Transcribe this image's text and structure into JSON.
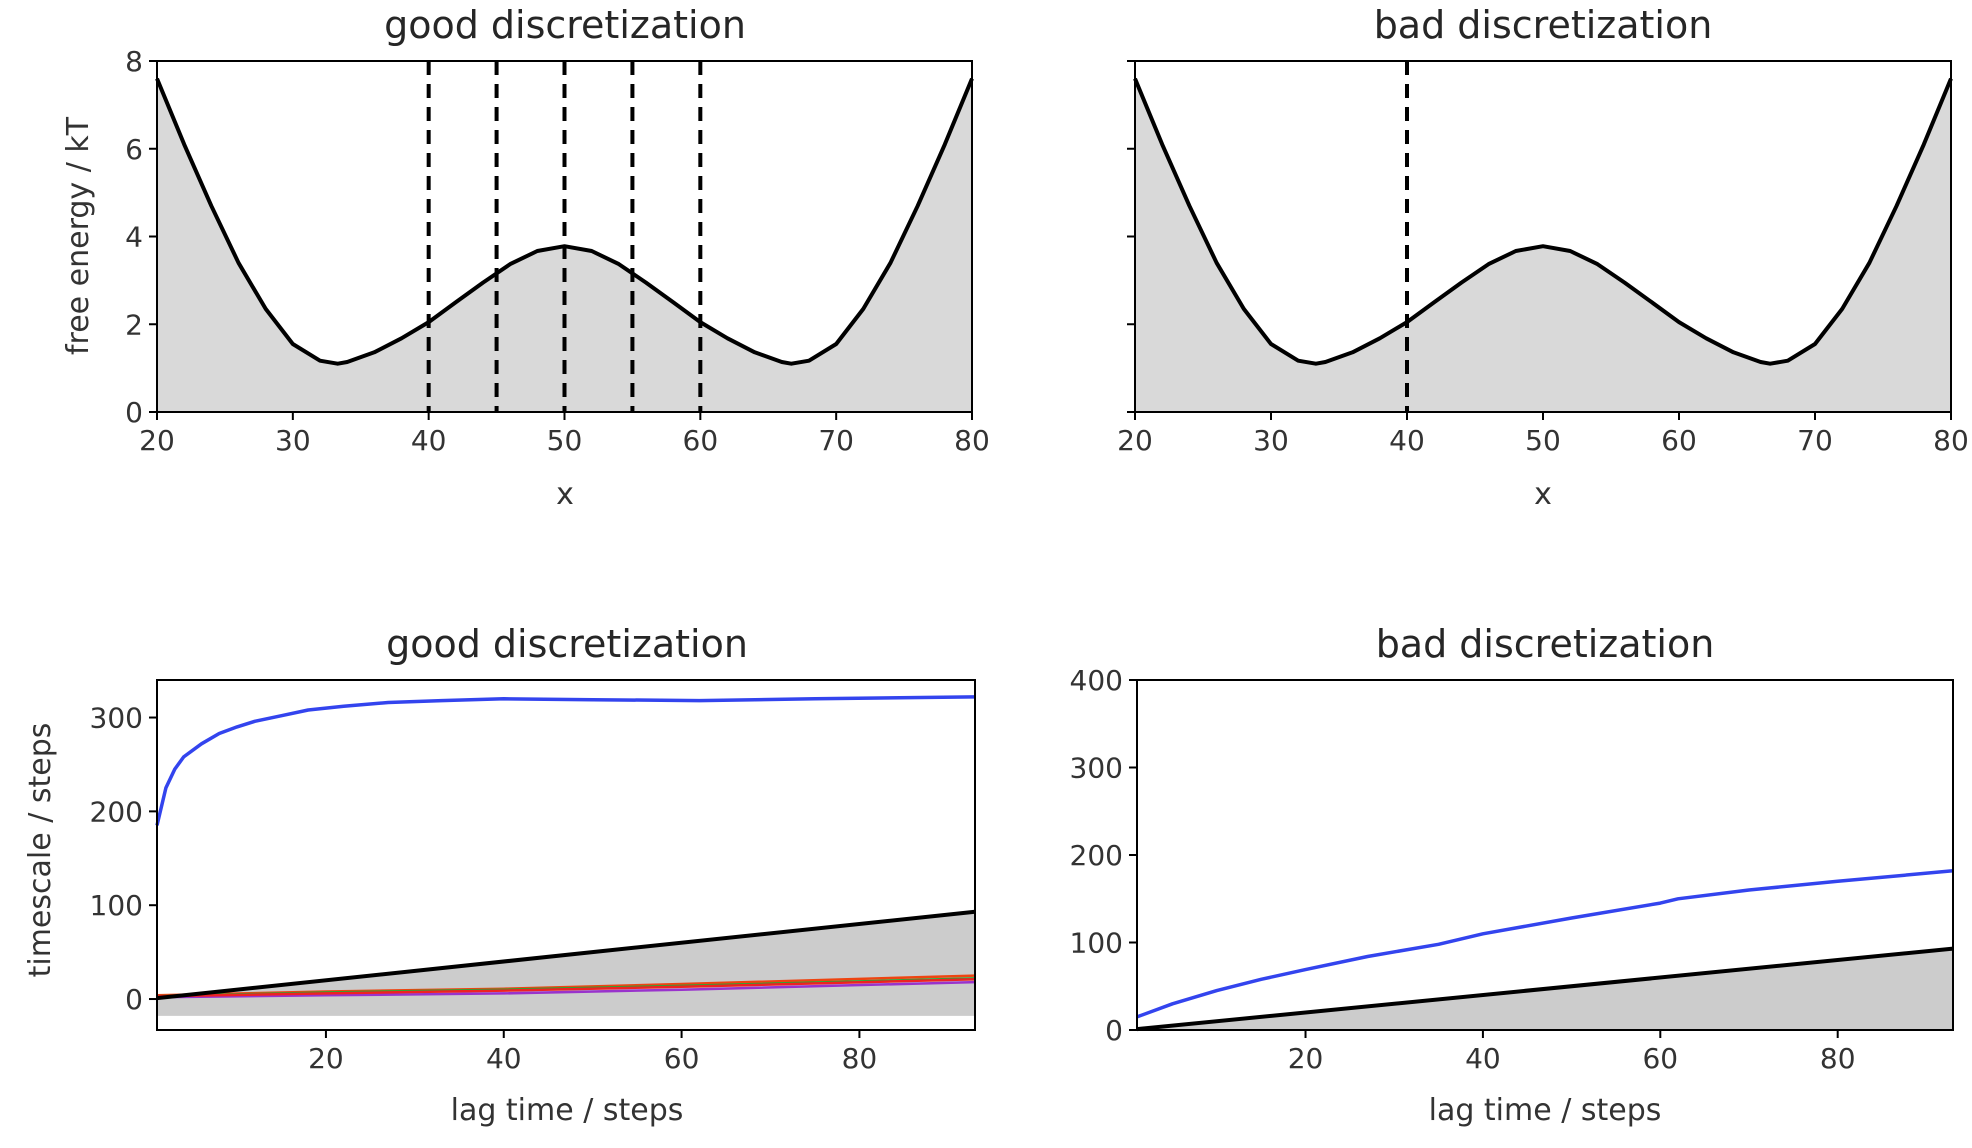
{
  "chart_data": [
    {
      "type": "line",
      "title": "good discretization",
      "xlabel": "x",
      "ylabel": "free energy / kT",
      "xlim": [
        20,
        80
      ],
      "ylim": [
        0,
        8
      ],
      "xticks": [
        "20",
        "30",
        "40",
        "50",
        "60",
        "70",
        "80"
      ],
      "yticks": [
        "0",
        "2",
        "4",
        "6",
        "8"
      ],
      "curve": {
        "x": [
          20,
          22,
          24,
          26,
          28,
          30,
          32,
          33.3,
          34,
          36,
          38,
          40,
          42,
          44,
          46,
          48,
          50,
          52,
          54,
          56,
          58,
          60,
          62,
          64,
          66,
          66.7,
          68,
          70,
          72,
          74,
          76,
          78,
          80
        ],
        "y": [
          7.6,
          6.1,
          4.7,
          3.4,
          2.35,
          1.55,
          1.17,
          1.1,
          1.14,
          1.36,
          1.68,
          2.05,
          2.5,
          2.95,
          3.37,
          3.67,
          3.78,
          3.67,
          3.37,
          2.95,
          2.5,
          2.05,
          1.68,
          1.36,
          1.14,
          1.1,
          1.17,
          1.55,
          2.35,
          3.4,
          4.7,
          6.1,
          7.6
        ]
      },
      "fill_color": "#d9d9d9",
      "line_color": "#000000",
      "cluster_boundaries": [
        40,
        45,
        50,
        55,
        60
      ]
    },
    {
      "type": "line",
      "title": "bad discretization",
      "xlabel": "x",
      "ylabel": "",
      "xlim": [
        20,
        80
      ],
      "ylim": [
        0,
        8
      ],
      "xticks": [
        "20",
        "30",
        "40",
        "50",
        "60",
        "70",
        "80"
      ],
      "yticks": [],
      "curve": {
        "x": [
          20,
          22,
          24,
          26,
          28,
          30,
          32,
          33.3,
          34,
          36,
          38,
          40,
          42,
          44,
          46,
          48,
          50,
          52,
          54,
          56,
          58,
          60,
          62,
          64,
          66,
          66.7,
          68,
          70,
          72,
          74,
          76,
          78,
          80
        ],
        "y": [
          7.6,
          6.1,
          4.7,
          3.4,
          2.35,
          1.55,
          1.17,
          1.1,
          1.14,
          1.36,
          1.68,
          2.05,
          2.5,
          2.95,
          3.37,
          3.67,
          3.78,
          3.67,
          3.37,
          2.95,
          2.5,
          2.05,
          1.68,
          1.36,
          1.14,
          1.1,
          1.17,
          1.55,
          2.35,
          3.4,
          4.7,
          6.1,
          7.6
        ]
      },
      "fill_color": "#d9d9d9",
      "line_color": "#000000",
      "cluster_boundaries": [
        40
      ]
    },
    {
      "type": "line",
      "title": "good discretization",
      "xlabel": "lag time / steps",
      "ylabel": "timescale / steps",
      "xlim": [
        1,
        93
      ],
      "ylim": [
        -33,
        340
      ],
      "xticks": [
        "20",
        "40",
        "60",
        "80"
      ],
      "yticks": [
        "0",
        "100",
        "200",
        "300"
      ],
      "series": [
        {
          "color": "#3344ee",
          "x": [
            1,
            2,
            3,
            4,
            6,
            8,
            10,
            12,
            15,
            18,
            22,
            27,
            33,
            40,
            50,
            62,
            75,
            93
          ],
          "y": [
            185,
            225,
            245,
            258,
            272,
            283,
            290,
            296,
            302,
            308,
            312,
            316,
            318,
            320,
            319,
            318,
            320,
            322
          ]
        },
        {
          "color": "#ee4411",
          "x": [
            1,
            20,
            40,
            60,
            93
          ],
          "y": [
            4,
            8,
            11,
            16,
            25
          ]
        },
        {
          "color": "#22aa33",
          "x": [
            1,
            20,
            40,
            60,
            93
          ],
          "y": [
            3,
            7,
            10,
            14,
            22
          ]
        },
        {
          "color": "#9933cc",
          "x": [
            1,
            20,
            40,
            60,
            93
          ],
          "y": [
            2,
            4,
            6,
            10,
            18
          ]
        },
        {
          "color": "#ee2222",
          "x": [
            1,
            20,
            40,
            60,
            93
          ],
          "y": [
            3,
            6,
            9,
            13,
            21
          ]
        }
      ],
      "lag_line": {
        "color": "#000000",
        "x": [
          1,
          93
        ],
        "y": [
          1,
          93
        ]
      },
      "fill_color": "#cccccc",
      "fill_bottom": -18
    },
    {
      "type": "line",
      "title": "bad discretization",
      "xlabel": "lag time / steps",
      "ylabel": "",
      "xlim": [
        1,
        93
      ],
      "ylim": [
        0,
        400
      ],
      "xticks": [
        "20",
        "40",
        "60",
        "80"
      ],
      "yticks": [
        "0",
        "100",
        "200",
        "300",
        "400"
      ],
      "series": [
        {
          "color": "#3344ee",
          "x": [
            1,
            5,
            10,
            15,
            20,
            27,
            35,
            40,
            50,
            60,
            62,
            70,
            80,
            93
          ],
          "y": [
            15,
            30,
            45,
            58,
            69,
            84,
            98,
            110,
            128,
            145,
            150,
            160,
            170,
            182
          ]
        }
      ],
      "lag_line": {
        "color": "#000000",
        "x": [
          1,
          93
        ],
        "y": [
          1,
          93
        ]
      },
      "fill_color": "#cccccc",
      "fill_bottom": 0
    }
  ]
}
